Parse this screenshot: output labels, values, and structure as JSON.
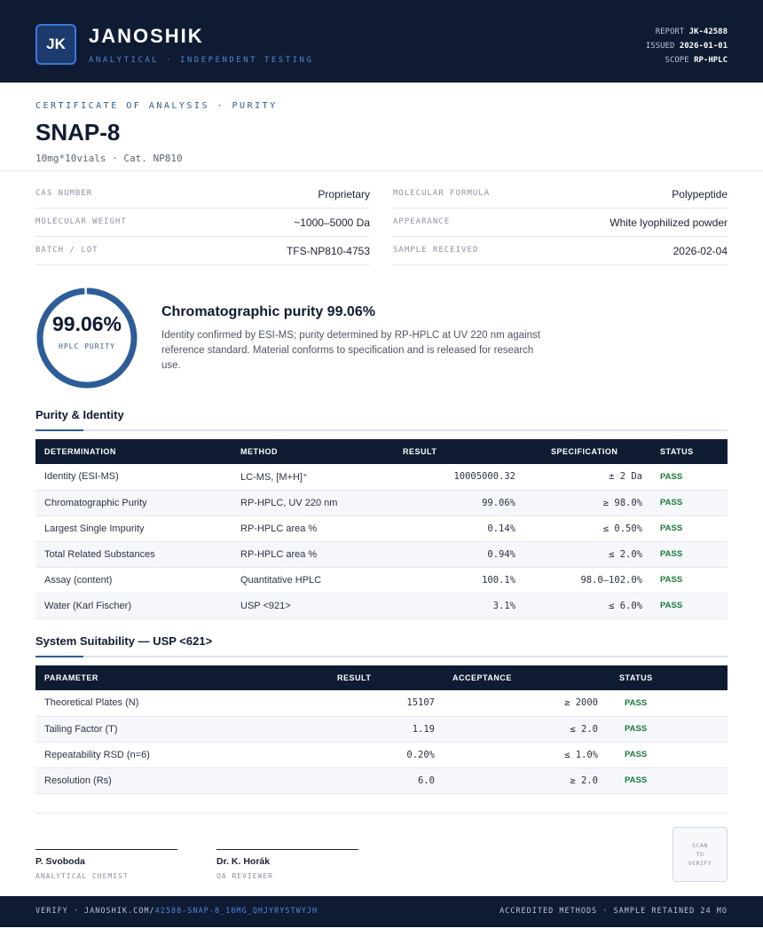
{
  "header": {
    "logo_initials": "JK",
    "brand": "JANOSHIK",
    "brand_sub": "ANALYTICAL · INDEPENDENT TESTING",
    "report_label": "REPORT",
    "report_value": "JK-42588",
    "issued_label": "ISSUED",
    "issued_value": "2026-01-01",
    "scope_label": "SCOPE",
    "scope_value": "RP-HPLC"
  },
  "title_block": {
    "cert_label": "CERTIFICATE OF ANALYSIS · PURITY",
    "title": "SNAP-8",
    "subtitle": "10mg*10vials  ·  Cat. NP810"
  },
  "info": [
    {
      "label": "CAS NUMBER",
      "value": "Proprietary"
    },
    {
      "label": "MOLECULAR FORMULA",
      "value": "Polypeptide"
    },
    {
      "label": "MOLECULAR WEIGHT",
      "value": "~1000–5000 Da"
    },
    {
      "label": "APPEARANCE",
      "value": "White lyophilized powder"
    },
    {
      "label": "BATCH / LOT",
      "value": "TFS-NP810-4753"
    },
    {
      "label": "SAMPLE RECEIVED",
      "value": "2026-02-04"
    }
  ],
  "purity": {
    "ring_value": "99.06%",
    "ring_fraction": 0.9906,
    "ring_label": "HPLC PURITY",
    "headline": "Chromatographic purity 99.06%",
    "description": "Identity confirmed by ESI-MS; purity determined by RP-HPLC at UV 220 nm against reference standard. Material conforms to specification and is released for research use."
  },
  "purity_identity": {
    "title": "Purity & Identity",
    "headers": [
      "DETERMINATION",
      "METHOD",
      "RESULT",
      "SPECIFICATION",
      "STATUS"
    ],
    "rows": [
      {
        "determination": "Identity (ESI-MS)",
        "method": "LC-MS, [M+H]⁺",
        "result": "10005000.32",
        "spec": "± 2 Da",
        "status": "PASS"
      },
      {
        "determination": "Chromatographic Purity",
        "method": "RP-HPLC, UV 220 nm",
        "result": "99.06%",
        "spec": "≥ 98.0%",
        "status": "PASS"
      },
      {
        "determination": "Largest Single Impurity",
        "method": "RP-HPLC area %",
        "result": "0.14%",
        "spec": "≤ 0.50%",
        "status": "PASS"
      },
      {
        "determination": "Total Related Substances",
        "method": "RP-HPLC area %",
        "result": "0.94%",
        "spec": "≤ 2.0%",
        "status": "PASS"
      },
      {
        "determination": "Assay (content)",
        "method": "Quantitative HPLC",
        "result": "100.1%",
        "spec": "98.0–102.0%",
        "status": "PASS"
      },
      {
        "determination": "Water (Karl Fischer)",
        "method": "USP <921>",
        "result": "3.1%",
        "spec": "≤ 6.0%",
        "status": "PASS"
      }
    ]
  },
  "system_suitability": {
    "title": "System Suitability — USP <621>",
    "headers": [
      "PARAMETER",
      "RESULT",
      "ACCEPTANCE",
      "STATUS"
    ],
    "rows": [
      {
        "parameter": "Theoretical Plates (N)",
        "result": "15107",
        "acceptance": "≥ 2000",
        "status": "PASS"
      },
      {
        "parameter": "Tailing Factor (T)",
        "result": "1.19",
        "acceptance": "≤ 2.0",
        "status": "PASS"
      },
      {
        "parameter": "Repeatability RSD (n=6)",
        "result": "0.20%",
        "acceptance": "≤ 1.0%",
        "status": "PASS"
      },
      {
        "parameter": "Resolution (Rs)",
        "result": "6.0",
        "acceptance": "≥ 2.0",
        "status": "PASS"
      }
    ]
  },
  "signatures": [
    {
      "name": "P. Svoboda",
      "role": "ANALYTICAL CHEMIST"
    },
    {
      "name": "Dr. K. Horák",
      "role": "QA REVIEWER"
    }
  ],
  "qr": {
    "line1": "SCAN",
    "line2": "TO",
    "line3": "VERIFY"
  },
  "footer": {
    "verify_prefix": "VERIFY · JANOSHIK.COM/",
    "verify_link": "42588-SNAP-8_10MG_QHJYRYSTWYJH",
    "right": "ACCREDITED METHODS · SAMPLE RETAINED 24 MO"
  },
  "colors": {
    "navy": "#0f1b33",
    "accent": "#2d5d99",
    "pass": "#1b7a3a"
  }
}
